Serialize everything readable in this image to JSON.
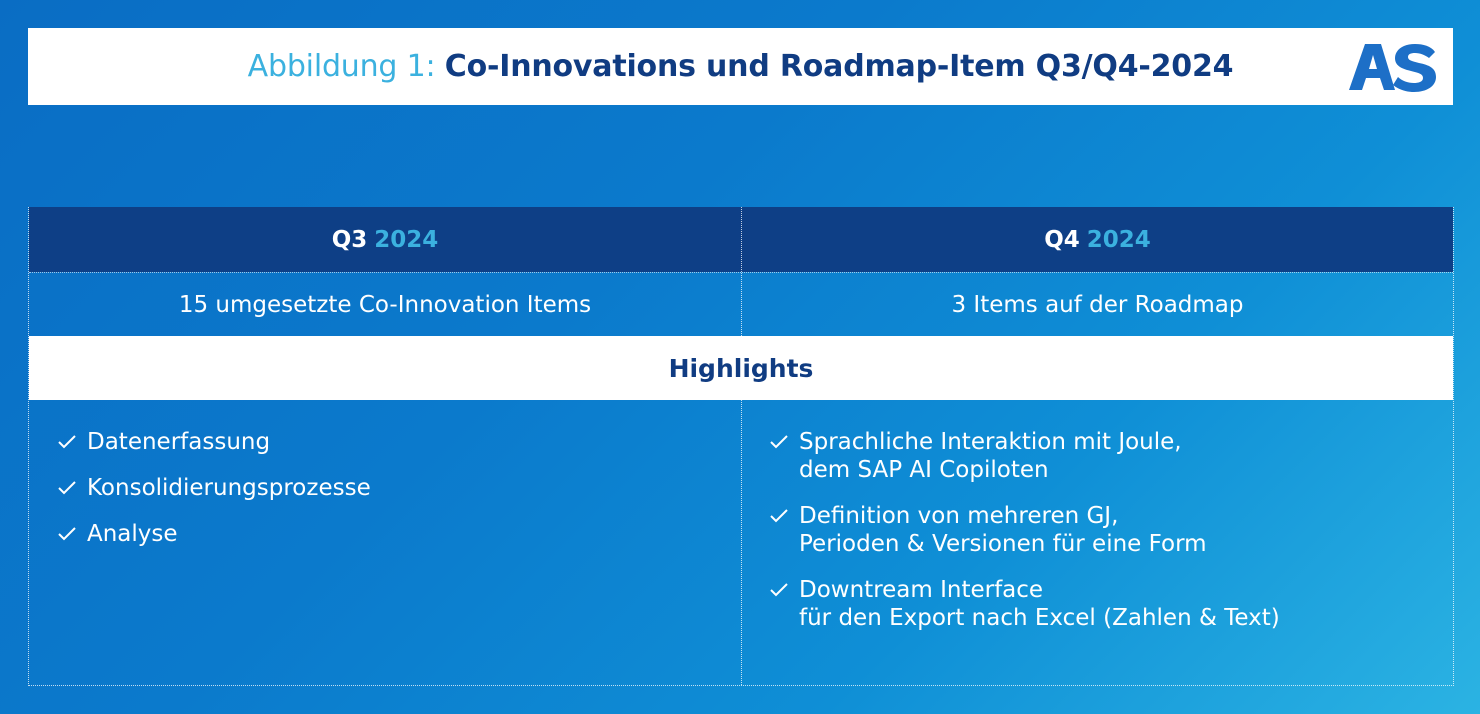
{
  "header": {
    "title_prefix": "Abbildung 1:",
    "title_main": "Co-Innovations und Roadmap-Item Q3/Q4-2024",
    "logo_text": "AS"
  },
  "table": {
    "columns": [
      {
        "quarter": "Q3",
        "year": "2024",
        "summary": "15 umgesetzte Co-Innovation Items",
        "highlights": [
          {
            "lines": [
              "Datenerfassung"
            ]
          },
          {
            "lines": [
              "Konsolidierungsprozesse"
            ]
          },
          {
            "lines": [
              "Analyse"
            ]
          }
        ]
      },
      {
        "quarter": "Q4",
        "year": "2024",
        "summary": "3 Items auf der Roadmap",
        "highlights": [
          {
            "lines": [
              "Sprachliche Interaktion mit Joule,",
              "dem SAP AI Copiloten"
            ]
          },
          {
            "lines": [
              "Definition von mehreren GJ,",
              "Perioden & Versionen für eine Form"
            ]
          },
          {
            "lines": [
              "Downtream Interface",
              "für den Export nach Excel (Zahlen & Text)"
            ]
          }
        ]
      }
    ],
    "highlights_label": "Highlights"
  },
  "colors": {
    "accent_light_blue": "#3bb1df",
    "navy": "#103c82",
    "header_row": "#0e3f86",
    "logo_blue": "#1d6fc7"
  },
  "icons": {
    "check": "check-icon",
    "logo": "as-logo"
  }
}
